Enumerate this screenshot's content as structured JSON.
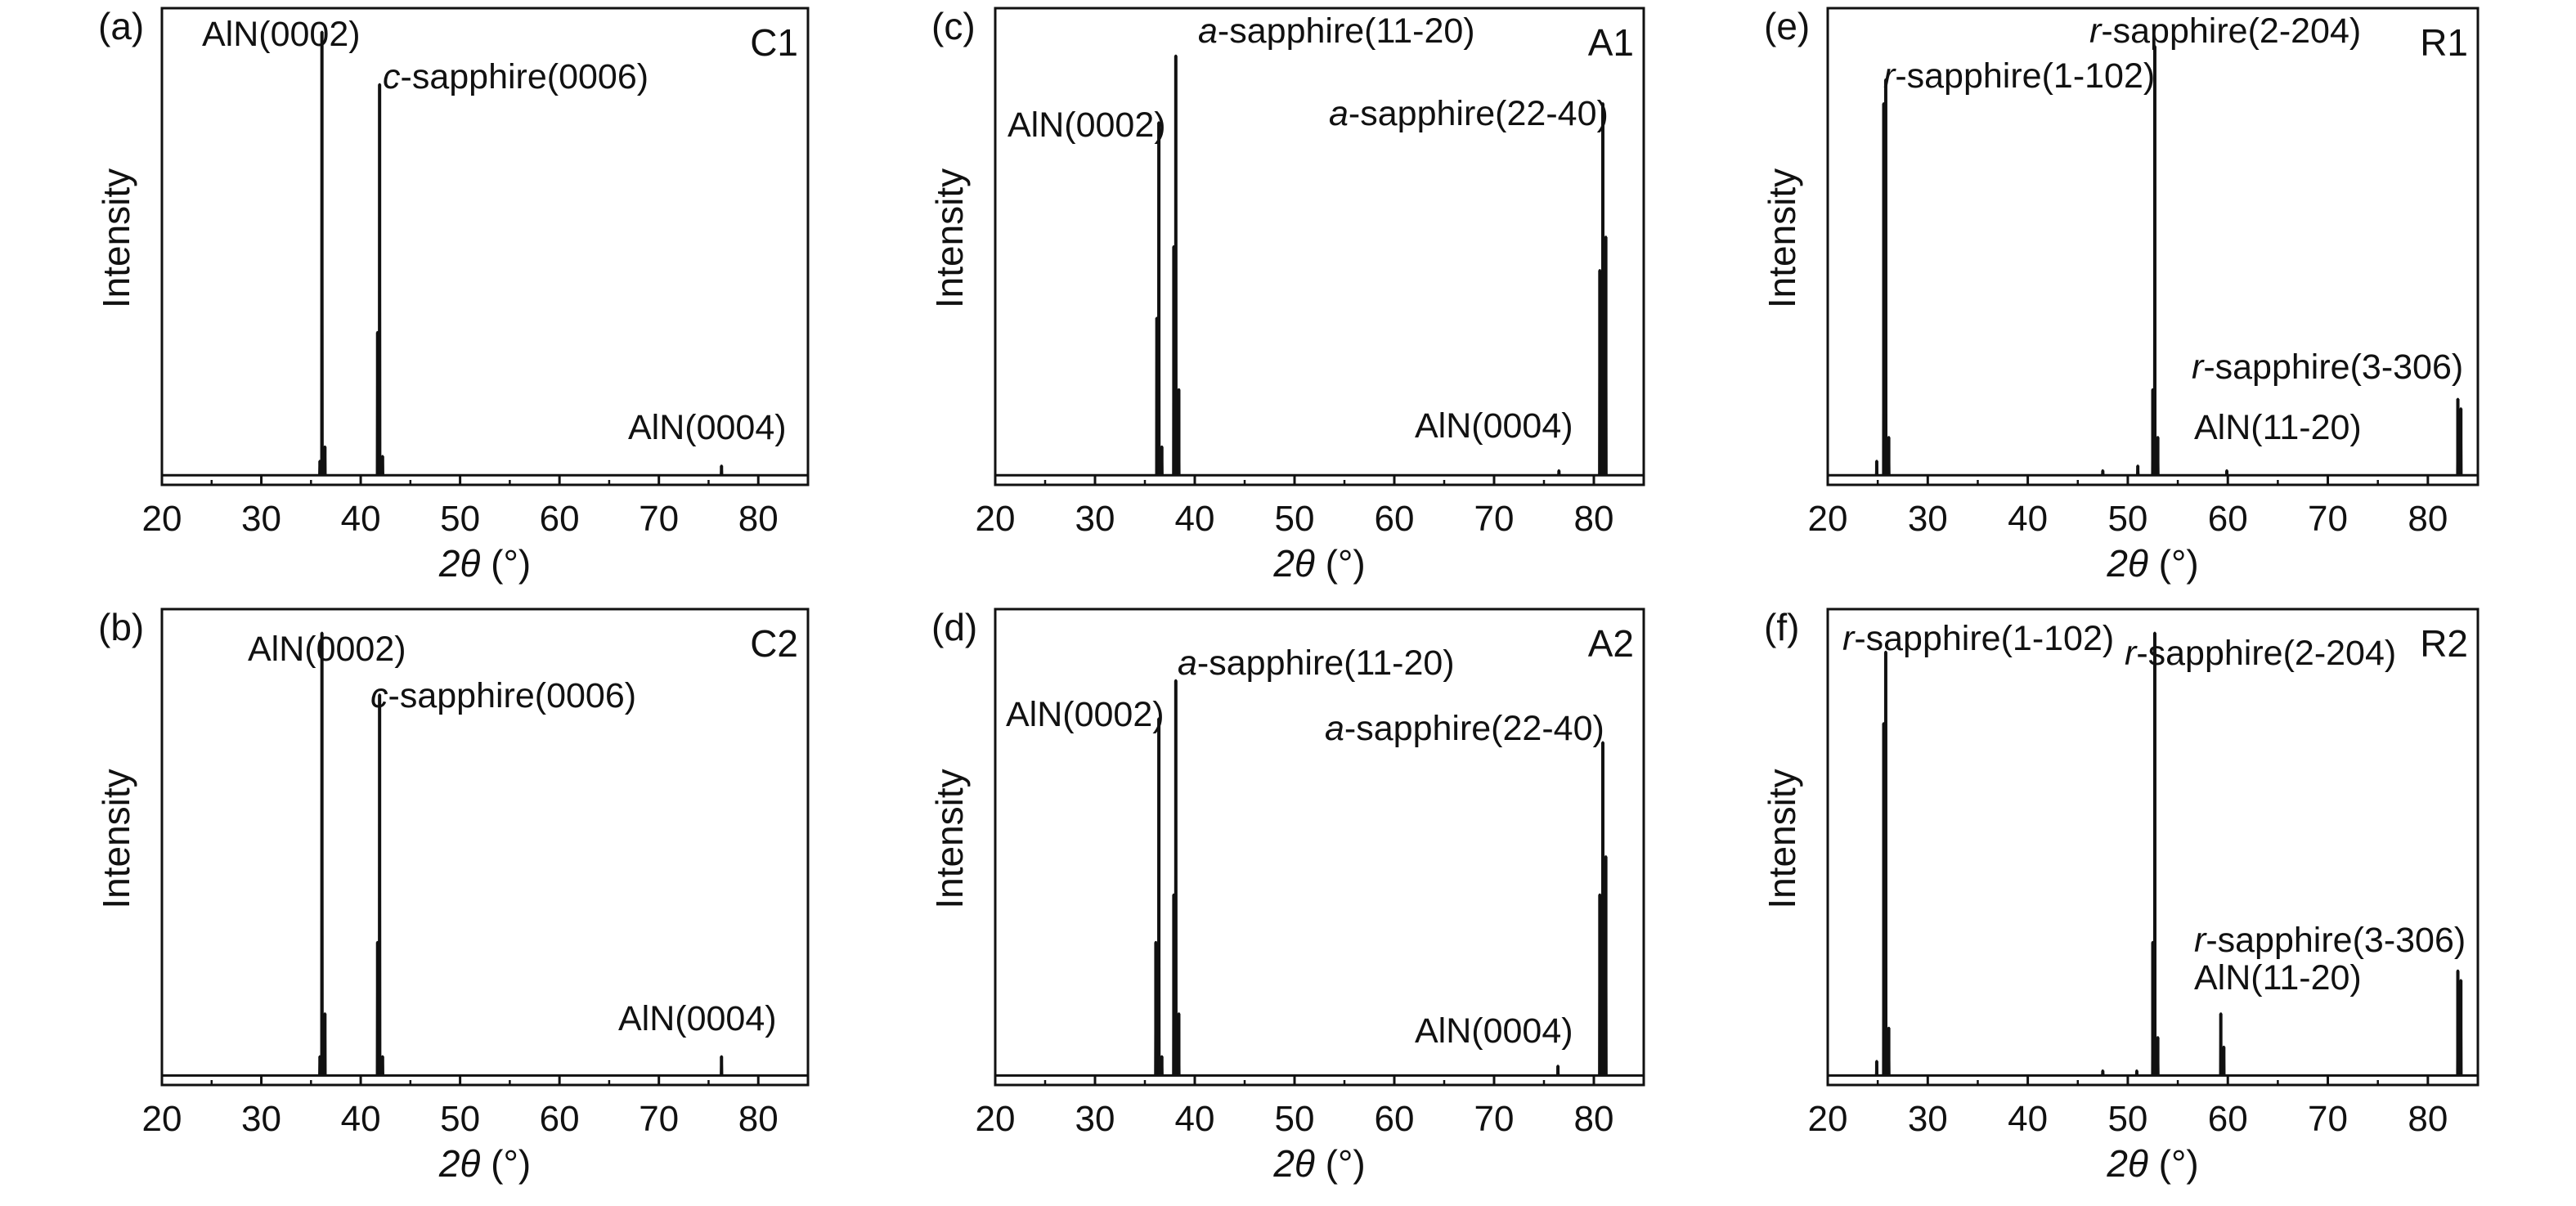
{
  "chart_data": [
    {
      "id": "a",
      "type": "line",
      "panel_letter": "(a)",
      "sample": "C1",
      "xlabel_symbol": "2θ",
      "xlabel_unit": " (°)",
      "ylabel": "Intensity",
      "xlim": [
        20,
        85
      ],
      "ylim": [
        0,
        100
      ],
      "x_ticks": [
        "20",
        "30",
        "40",
        "50",
        "60",
        "70",
        "80"
      ],
      "baseline": 2,
      "peaks": [
        {
          "x": 35.9,
          "y": 5
        },
        {
          "x": 36.1,
          "y": 95
        },
        {
          "x": 36.4,
          "y": 8
        },
        {
          "x": 41.7,
          "y": 32
        },
        {
          "x": 41.9,
          "y": 84
        },
        {
          "x": 42.2,
          "y": 6
        },
        {
          "x": 76.3,
          "y": 4
        }
      ],
      "annotations": [
        {
          "text": "AlN(0002)"
        },
        {
          "prefix": "c",
          "text": "-sapphire(0006)"
        },
        {
          "text": "AlN(0004)"
        }
      ]
    },
    {
      "id": "b",
      "type": "line",
      "panel_letter": "(b)",
      "sample": "C2",
      "xlabel_symbol": "2θ",
      "xlabel_unit": " (°)",
      "ylabel": "Intensity",
      "xlim": [
        20,
        85
      ],
      "ylim": [
        0,
        100
      ],
      "x_ticks": [
        "20",
        "30",
        "40",
        "50",
        "60",
        "70",
        "80"
      ],
      "baseline": 2,
      "peaks": [
        {
          "x": 35.9,
          "y": 6
        },
        {
          "x": 36.1,
          "y": 95
        },
        {
          "x": 36.4,
          "y": 15
        },
        {
          "x": 41.7,
          "y": 30
        },
        {
          "x": 41.9,
          "y": 82
        },
        {
          "x": 42.2,
          "y": 6
        },
        {
          "x": 76.3,
          "y": 6
        }
      ],
      "annotations": [
        {
          "text": "AlN(0002)"
        },
        {
          "prefix": "c",
          "text": "-sapphire(0006)"
        },
        {
          "text": "AlN(0004)"
        }
      ]
    },
    {
      "id": "c",
      "type": "line",
      "panel_letter": "(c)",
      "sample": "A1",
      "xlabel_symbol": "2θ",
      "xlabel_unit": " (°)",
      "ylabel": "Intensity",
      "xlim": [
        20,
        85
      ],
      "ylim": [
        0,
        100
      ],
      "x_ticks": [
        "20",
        "30",
        "40",
        "50",
        "60",
        "70",
        "80"
      ],
      "baseline": 2,
      "peaks": [
        {
          "x": 36.2,
          "y": 35
        },
        {
          "x": 36.4,
          "y": 76
        },
        {
          "x": 36.7,
          "y": 8
        },
        {
          "x": 37.9,
          "y": 50
        },
        {
          "x": 38.1,
          "y": 90
        },
        {
          "x": 38.4,
          "y": 20
        },
        {
          "x": 76.5,
          "y": 3
        },
        {
          "x": 80.6,
          "y": 45
        },
        {
          "x": 80.9,
          "y": 80
        },
        {
          "x": 81.2,
          "y": 52
        }
      ],
      "annotations": [
        {
          "text": "AlN(0002)"
        },
        {
          "prefix": "a",
          "text": "-sapphire(11-20)"
        },
        {
          "prefix": "a",
          "text": "-sapphire(22-40)"
        },
        {
          "text": "AlN(0004)"
        }
      ]
    },
    {
      "id": "d",
      "type": "line",
      "panel_letter": "(d)",
      "sample": "A2",
      "xlabel_symbol": "2θ",
      "xlabel_unit": " (°)",
      "ylabel": "Intensity",
      "xlim": [
        20,
        85
      ],
      "ylim": [
        0,
        100
      ],
      "x_ticks": [
        "20",
        "30",
        "40",
        "50",
        "60",
        "70",
        "80"
      ],
      "baseline": 2,
      "peaks": [
        {
          "x": 36.1,
          "y": 30
        },
        {
          "x": 36.4,
          "y": 77
        },
        {
          "x": 36.7,
          "y": 6
        },
        {
          "x": 37.9,
          "y": 40
        },
        {
          "x": 38.1,
          "y": 85
        },
        {
          "x": 38.4,
          "y": 15
        },
        {
          "x": 76.4,
          "y": 4
        },
        {
          "x": 80.6,
          "y": 40
        },
        {
          "x": 80.9,
          "y": 72
        },
        {
          "x": 81.2,
          "y": 48
        }
      ],
      "annotations": [
        {
          "text": "AlN(0002)"
        },
        {
          "prefix": "a",
          "text": "-sapphire(11-20)"
        },
        {
          "prefix": "a",
          "text": "-sapphire(22-40)"
        },
        {
          "text": "AlN(0004)"
        }
      ]
    },
    {
      "id": "e",
      "type": "line",
      "panel_letter": "(e)",
      "sample": "R1",
      "xlabel_symbol": "2θ",
      "xlabel_unit": " (°)",
      "ylabel": "Intensity",
      "xlim": [
        20,
        85
      ],
      "ylim": [
        0,
        100
      ],
      "x_ticks": [
        "20",
        "30",
        "40",
        "50",
        "60",
        "70",
        "80"
      ],
      "baseline": 2,
      "peaks": [
        {
          "x": 24.9,
          "y": 5
        },
        {
          "x": 25.6,
          "y": 80
        },
        {
          "x": 25.8,
          "y": 85
        },
        {
          "x": 26.1,
          "y": 10
        },
        {
          "x": 47.5,
          "y": 3
        },
        {
          "x": 51.0,
          "y": 4
        },
        {
          "x": 52.5,
          "y": 20
        },
        {
          "x": 52.7,
          "y": 92
        },
        {
          "x": 53.0,
          "y": 10
        },
        {
          "x": 59.9,
          "y": 3
        },
        {
          "x": 83.0,
          "y": 18
        },
        {
          "x": 83.3,
          "y": 16
        }
      ],
      "annotations": [
        {
          "prefix": "r",
          "text": "-sapphire(1-102)"
        },
        {
          "prefix": "r",
          "text": "-sapphire(2-204)"
        },
        {
          "prefix": "r",
          "text": "-sapphire(3-306)"
        },
        {
          "text": "AlN(11-20)"
        }
      ]
    },
    {
      "id": "f",
      "type": "line",
      "panel_letter": "(f)",
      "sample": "R2",
      "xlabel_symbol": "2θ",
      "xlabel_unit": " (°)",
      "ylabel": "Intensity",
      "xlim": [
        20,
        85
      ],
      "ylim": [
        0,
        100
      ],
      "x_ticks": [
        "20",
        "30",
        "40",
        "50",
        "60",
        "70",
        "80"
      ],
      "baseline": 2,
      "peaks": [
        {
          "x": 24.9,
          "y": 5
        },
        {
          "x": 25.6,
          "y": 76
        },
        {
          "x": 25.8,
          "y": 91
        },
        {
          "x": 26.1,
          "y": 12
        },
        {
          "x": 47.5,
          "y": 3
        },
        {
          "x": 50.9,
          "y": 3
        },
        {
          "x": 52.5,
          "y": 30
        },
        {
          "x": 52.7,
          "y": 95
        },
        {
          "x": 53.0,
          "y": 10
        },
        {
          "x": 59.3,
          "y": 15
        },
        {
          "x": 59.6,
          "y": 8
        },
        {
          "x": 83.0,
          "y": 24
        },
        {
          "x": 83.3,
          "y": 22
        }
      ],
      "annotations": [
        {
          "prefix": "r",
          "text": "-sapphire(1-102)"
        },
        {
          "prefix": "r",
          "text": "-sapphire(2-204)"
        },
        {
          "prefix": "r",
          "text": "-sapphire(3-306)"
        },
        {
          "text": "AlN(11-20)"
        }
      ]
    }
  ]
}
